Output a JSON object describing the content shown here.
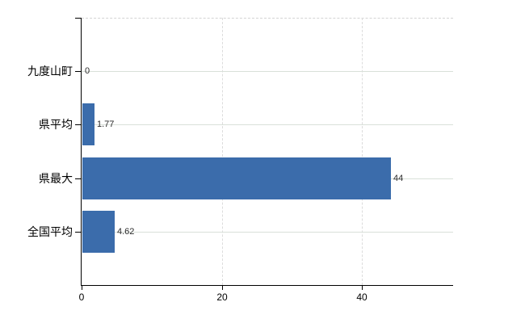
{
  "chart_data": {
    "type": "bar",
    "orientation": "horizontal",
    "title": "",
    "xlabel": "",
    "ylabel": "",
    "categories": [
      "九度山町",
      "県平均",
      "県最大",
      "全国平均"
    ],
    "values": [
      0,
      1.77,
      44,
      4.62
    ],
    "value_labels": [
      "0",
      "1.77",
      "44",
      "4.62"
    ],
    "xlim": [
      0,
      53
    ],
    "x_ticks": [
      0,
      20,
      40
    ],
    "x_tick_labels": [
      "0",
      "20",
      "40"
    ],
    "grid": "on",
    "legend": "none",
    "colors": {
      "bar": "#3b6cab",
      "h_gridline": "#d9e0d9",
      "v_gridline": "#dcdcdc",
      "plot_top_border": "#d4d4d4",
      "axis": "#000000",
      "category_text": "#000000",
      "value_text": "#2b2b2b"
    }
  }
}
